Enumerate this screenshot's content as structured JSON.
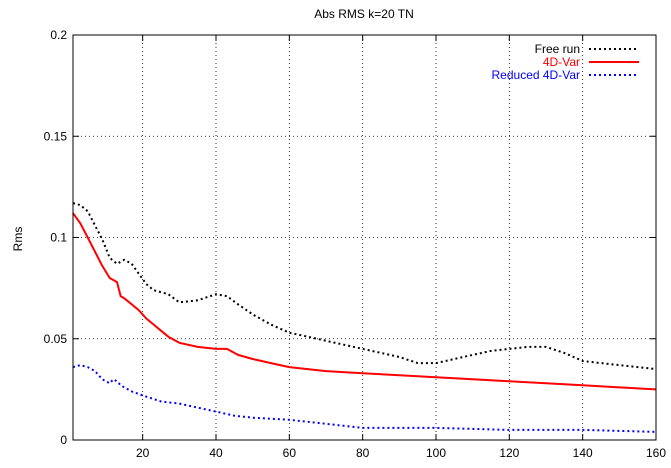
{
  "chart_data": {
    "type": "line",
    "title": "Abs RMS k=20 TN",
    "xlabel": "",
    "ylabel": "Rms",
    "xlim": [
      1,
      160
    ],
    "ylim": [
      0,
      0.2
    ],
    "x_ticks": [
      20,
      40,
      60,
      80,
      100,
      120,
      140,
      160
    ],
    "y_ticks": [
      0,
      0.05,
      0.1,
      0.15,
      0.2
    ],
    "y_tick_labels": [
      "0",
      "0.05",
      "0.1",
      "0.15",
      "0.2"
    ],
    "grid": true,
    "legend_position": "top-right",
    "series": [
      {
        "name": "Free run",
        "color": "#000000",
        "style": "dotted",
        "x": [
          1,
          3,
          5,
          7,
          9,
          11,
          13,
          15,
          17,
          19,
          21,
          23,
          25,
          27,
          30,
          35,
          40,
          43,
          46,
          50,
          55,
          60,
          65,
          70,
          75,
          80,
          85,
          90,
          95,
          100,
          105,
          110,
          115,
          120,
          125,
          130,
          135,
          140,
          145,
          150,
          155,
          160
        ],
        "y": [
          0.117,
          0.116,
          0.113,
          0.106,
          0.099,
          0.09,
          0.087,
          0.089,
          0.087,
          0.082,
          0.077,
          0.074,
          0.073,
          0.072,
          0.068,
          0.069,
          0.072,
          0.071,
          0.067,
          0.062,
          0.057,
          0.053,
          0.051,
          0.049,
          0.047,
          0.045,
          0.043,
          0.041,
          0.038,
          0.038,
          0.04,
          0.042,
          0.044,
          0.045,
          0.046,
          0.046,
          0.043,
          0.039,
          0.038,
          0.037,
          0.036,
          0.035
        ]
      },
      {
        "name": "4D-Var",
        "color": "#ff0000",
        "style": "solid",
        "x": [
          1,
          3,
          5,
          7,
          9,
          11,
          13,
          14,
          15,
          17,
          19,
          21,
          23,
          25,
          27,
          30,
          35,
          40,
          43,
          46,
          50,
          55,
          60,
          65,
          70,
          80,
          90,
          100,
          110,
          120,
          130,
          140,
          150,
          160
        ],
        "y": [
          0.112,
          0.107,
          0.1,
          0.093,
          0.086,
          0.08,
          0.078,
          0.071,
          0.07,
          0.067,
          0.064,
          0.06,
          0.057,
          0.054,
          0.051,
          0.048,
          0.046,
          0.045,
          0.045,
          0.042,
          0.04,
          0.038,
          0.036,
          0.035,
          0.034,
          0.033,
          0.032,
          0.031,
          0.03,
          0.029,
          0.028,
          0.027,
          0.026,
          0.025
        ]
      },
      {
        "name": "Reduced 4D-Var",
        "color": "#0000ff",
        "style": "dotted",
        "x": [
          1,
          3,
          5,
          7,
          9,
          11,
          12,
          13,
          14,
          15,
          17,
          20,
          25,
          30,
          35,
          40,
          45,
          50,
          60,
          70,
          80,
          90,
          100,
          120,
          140,
          160
        ],
        "y": [
          0.036,
          0.037,
          0.036,
          0.034,
          0.03,
          0.028,
          0.03,
          0.029,
          0.027,
          0.026,
          0.024,
          0.022,
          0.019,
          0.018,
          0.016,
          0.014,
          0.012,
          0.011,
          0.01,
          0.008,
          0.006,
          0.006,
          0.006,
          0.005,
          0.005,
          0.004
        ]
      }
    ]
  }
}
